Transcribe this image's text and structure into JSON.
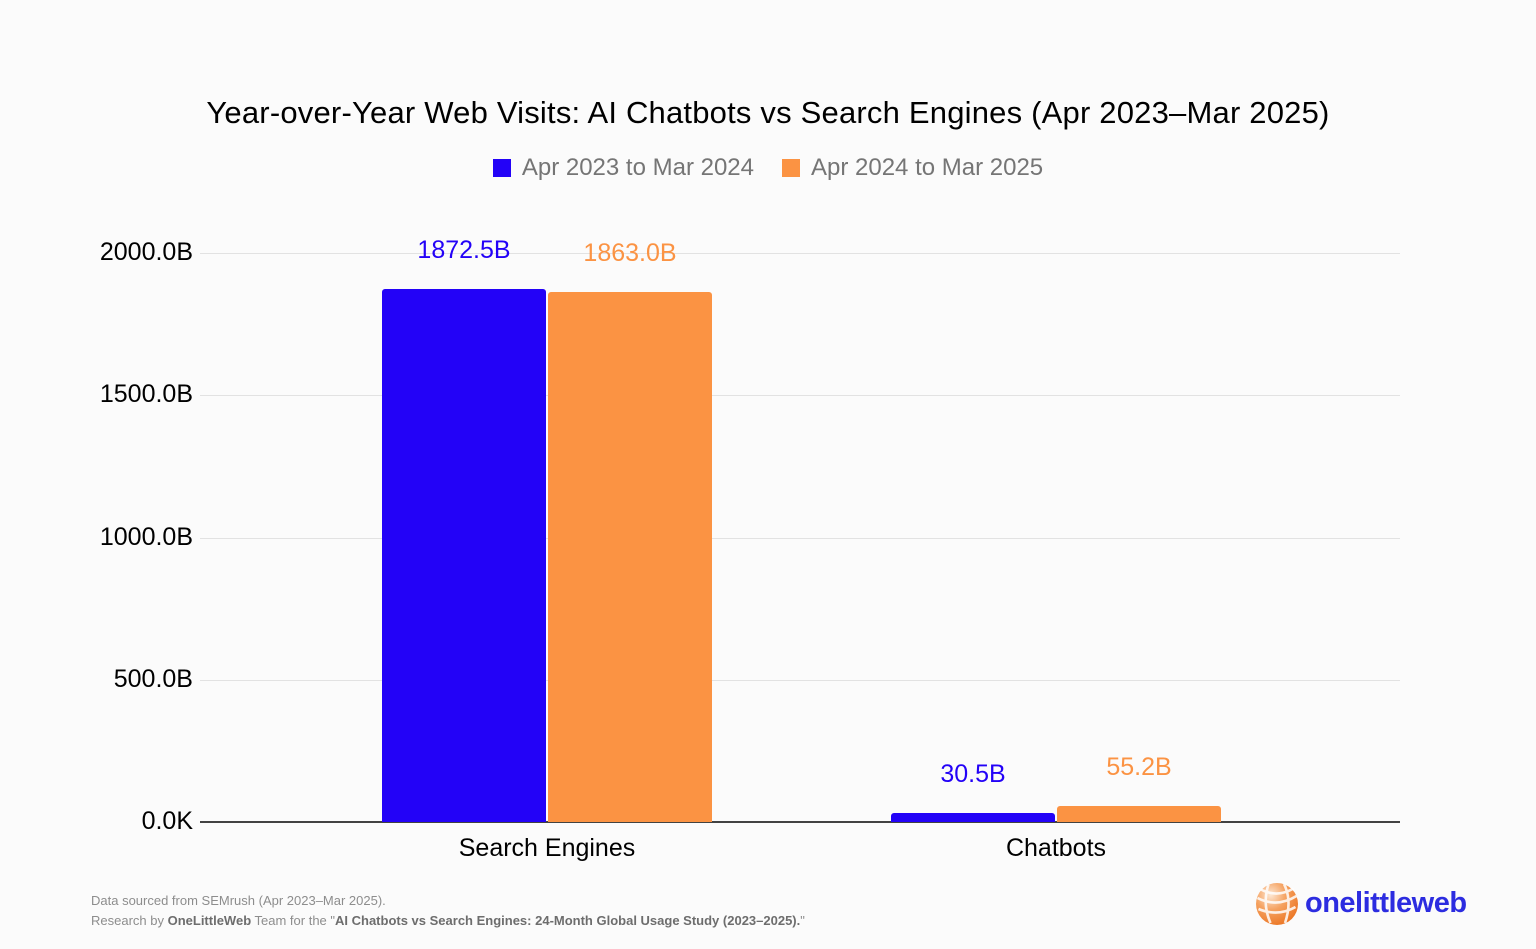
{
  "chart_data": {
    "type": "bar",
    "title": "Year-over-Year Web Visits: AI Chatbots vs Search Engines (Apr 2023–Mar 2025)",
    "categories": [
      "Search Engines",
      "Chatbots"
    ],
    "series": [
      {
        "name": "Apr 2023 to Mar 2024",
        "color": "#2302f7",
        "values": [
          1872.5,
          30.5
        ],
        "value_labels": [
          "1872.5B",
          "30.5B"
        ]
      },
      {
        "name": "Apr 2024 to Mar 2025",
        "color": "#fb9343",
        "values": [
          1863.0,
          55.2
        ],
        "value_labels": [
          "1863.0B",
          "55.2B"
        ]
      }
    ],
    "xlabel": "",
    "ylabel": "",
    "ylim": [
      0,
      2000
    ],
    "y_ticks": [
      {
        "value": 2000,
        "label": "2000.0B"
      },
      {
        "value": 1500,
        "label": "1500.0B"
      },
      {
        "value": 1000,
        "label": "1000.0B"
      },
      {
        "value": 500,
        "label": "500.0B"
      },
      {
        "value": 0,
        "label": "0.0K"
      }
    ],
    "grid": true,
    "legend_position": "top"
  },
  "footer": {
    "line1": "Data sourced from SEMrush (Apr 2023–Mar 2025).",
    "line2_parts": [
      {
        "text": "Research by ",
        "bold": false
      },
      {
        "text": "OneLittleWeb",
        "bold": true
      },
      {
        "text": " Team for the \"",
        "bold": false
      },
      {
        "text": "AI Chatbots vs Search Engines: 24-Month Global Usage Study (2023–2025).",
        "bold": true
      },
      {
        "text": "\"",
        "bold": false
      }
    ]
  },
  "logo": {
    "text": "onelittleweb",
    "icon": "onelittleweb-sphere-icon",
    "text_color": "#2c2ce0",
    "icon_color": "#f08a3c"
  },
  "colors": {
    "background": "#fbfbfb",
    "gridline": "#e2e2e2",
    "axis_line": "#424242",
    "axis_text": "#000000",
    "legend_text": "#757575",
    "footer_text": "#8d8d8d",
    "footer_bold": "#6d6d6d"
  }
}
